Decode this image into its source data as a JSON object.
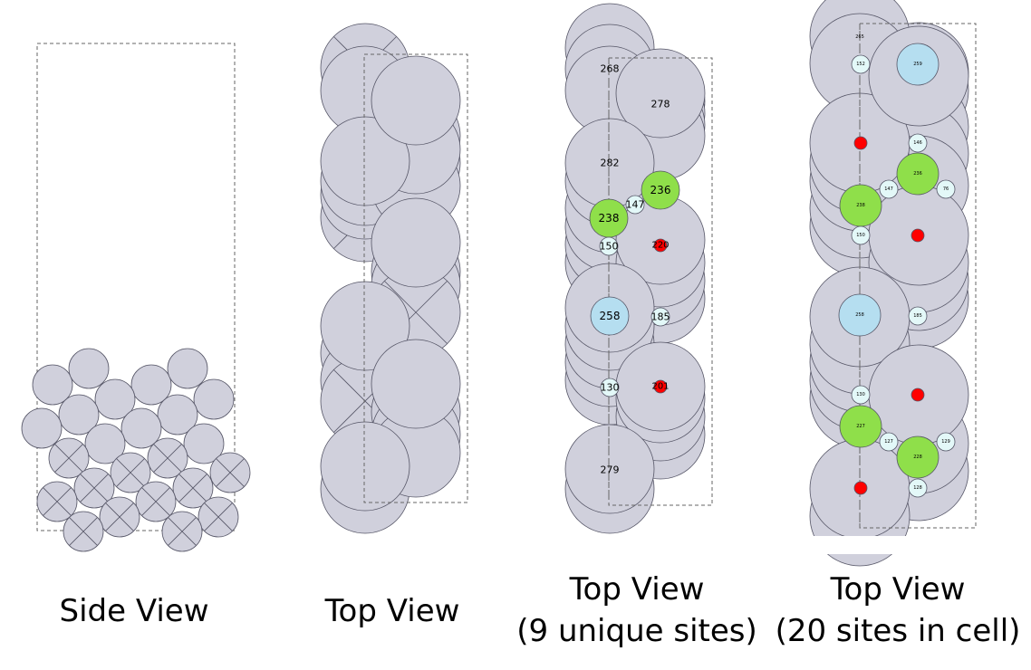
{
  "colors": {
    "atom_fill": "#d0d0dc",
    "atom_stroke": "#555566",
    "cell_stroke": "#666666",
    "green_site": "#8fdf4a",
    "blue_site": "#b5def0",
    "small_site": "#e3f8f8",
    "red_site": "#ff0000",
    "text": "#000000"
  },
  "panels": [
    {
      "id": "side",
      "caption_lines": [
        "Side View"
      ],
      "sites": []
    },
    {
      "id": "top",
      "caption_lines": [
        "Top View"
      ],
      "sites": []
    },
    {
      "id": "top-9",
      "caption_lines": [
        "Top View",
        "(9 unique sites)"
      ],
      "atom_labels": [
        "268",
        "278",
        "282",
        "279"
      ],
      "sites": [
        {
          "label": "236",
          "kind": "green"
        },
        {
          "label": "238",
          "kind": "green"
        },
        {
          "label": "147",
          "kind": "small"
        },
        {
          "label": "150",
          "kind": "small"
        },
        {
          "label": "220",
          "kind": "red"
        },
        {
          "label": "258",
          "kind": "blue"
        },
        {
          "label": "185",
          "kind": "small"
        },
        {
          "label": "130",
          "kind": "small"
        },
        {
          "label": "201",
          "kind": "red"
        }
      ]
    },
    {
      "id": "top-20",
      "caption_lines": [
        "Top View",
        "(20 sites in cell)"
      ],
      "atom_labels": [
        "265"
      ],
      "sites": [
        {
          "label": "152",
          "kind": "small"
        },
        {
          "label": "259",
          "kind": "blue"
        },
        {
          "label": "146",
          "kind": "small"
        },
        {
          "label": "236",
          "kind": "green"
        },
        {
          "label": "147",
          "kind": "small"
        },
        {
          "label": "76",
          "kind": "small"
        },
        {
          "label": "238",
          "kind": "green"
        },
        {
          "label": "150",
          "kind": "small"
        },
        {
          "label": "258",
          "kind": "blue"
        },
        {
          "label": "185",
          "kind": "small"
        },
        {
          "label": "130",
          "kind": "small"
        },
        {
          "label": "227",
          "kind": "green"
        },
        {
          "label": "127",
          "kind": "small"
        },
        {
          "label": "129",
          "kind": "small"
        },
        {
          "label": "228",
          "kind": "green"
        },
        {
          "label": "128",
          "kind": "small"
        },
        {
          "label": "",
          "kind": "red"
        },
        {
          "label": "",
          "kind": "red"
        },
        {
          "label": "",
          "kind": "red"
        },
        {
          "label": "",
          "kind": "red"
        }
      ]
    }
  ]
}
